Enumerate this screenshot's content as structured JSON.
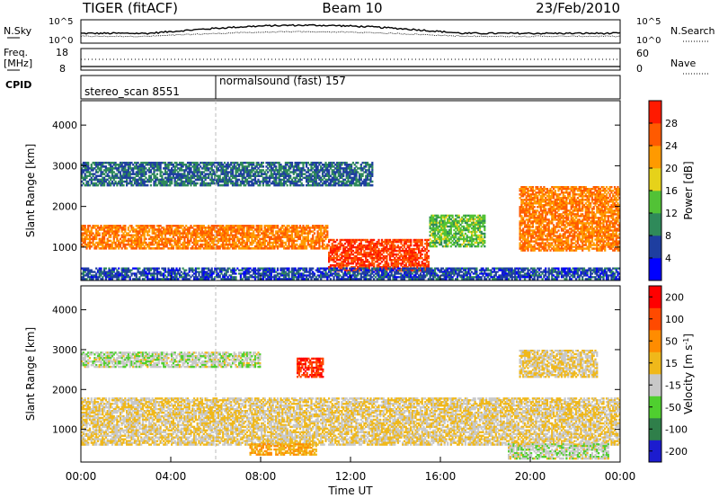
{
  "header": {
    "radar": "TIGER (fitACF)",
    "beam": "Beam 10",
    "date": "23/Feb/2010"
  },
  "noise_panel": {
    "left_label": "N.Sky",
    "left_ticks": [
      "10^5",
      "10^0"
    ],
    "right_label": "N.Search",
    "right_ticks": [
      "10^5",
      "10^0"
    ]
  },
  "freq_panel": {
    "left_label_1": "Freq.",
    "left_label_2": "[MHz]",
    "left_ticks": [
      "18",
      "8"
    ],
    "right_label": "Nave",
    "right_ticks": [
      "60",
      "0"
    ]
  },
  "cpid_panel": {
    "label": "CPID",
    "segments": [
      {
        "start_hour": 0,
        "end_hour": 6,
        "text": "stereo_scan 8551"
      },
      {
        "start_hour": 6,
        "end_hour": 24,
        "text": "normalsound (fast) 157"
      }
    ]
  },
  "chart_data": [
    {
      "type": "heatmap",
      "title": "",
      "xlabel": "Time UT",
      "ylabel": "Slant Range [km]",
      "x_ticks": [
        "00:00",
        "04:00",
        "08:00",
        "12:00",
        "16:00",
        "20:00",
        "00:00"
      ],
      "x_range_hours": [
        0,
        24
      ],
      "y_ticks": [
        "1000",
        "2000",
        "3000",
        "4000"
      ],
      "y_range": [
        180,
        4600
      ],
      "colorbar": {
        "label": "Power [dB]",
        "ticks": [
          "4",
          "8",
          "12",
          "16",
          "20",
          "24",
          "28"
        ],
        "range": [
          0,
          32
        ],
        "colors": [
          "#0000ff",
          "#1e3ea0",
          "#2f8a5a",
          "#52c236",
          "#e6d21a",
          "#ff9a00",
          "#ff5a00",
          "#ff1a00"
        ]
      },
      "echo_regions": [
        {
          "start_hour": 0,
          "end_hour": 11,
          "range_low": 950,
          "range_high": 1550,
          "value": 24
        },
        {
          "start_hour": 11,
          "end_hour": 15.5,
          "range_low": 400,
          "range_high": 1200,
          "value": 28
        },
        {
          "start_hour": 15.5,
          "end_hour": 18,
          "range_low": 1000,
          "range_high": 1800,
          "value": 14
        },
        {
          "start_hour": 19.5,
          "end_hour": 24,
          "range_low": 900,
          "range_high": 2500,
          "value": 24
        },
        {
          "start_hour": 0,
          "end_hour": 13,
          "range_low": 2500,
          "range_high": 3100,
          "value": 8
        },
        {
          "start_hour": 0,
          "end_hour": 24,
          "range_low": 200,
          "range_high": 500,
          "value": 6
        }
      ]
    },
    {
      "type": "heatmap",
      "title": "",
      "xlabel": "Time UT",
      "ylabel": "Slant Range [km]",
      "x_ticks": [
        "00:00",
        "04:00",
        "08:00",
        "12:00",
        "16:00",
        "20:00",
        "00:00"
      ],
      "x_range_hours": [
        0,
        24
      ],
      "y_ticks": [
        "1000",
        "2000",
        "3000",
        "4000"
      ],
      "y_range": [
        180,
        4600
      ],
      "colorbar": {
        "label": "Velocity [m s^-1]",
        "ticks": [
          "200",
          "100",
          "50",
          "15",
          "-15",
          "-50",
          "-100",
          "-200"
        ],
        "range": [
          -250,
          250
        ],
        "colors": [
          "#1c1ccf",
          "#2f7f4a",
          "#4fcf2f",
          "#c8c8c8",
          "#f0b81a",
          "#ff8c00",
          "#ff4a00",
          "#ff0000"
        ]
      },
      "echo_regions": [
        {
          "start_hour": 0,
          "end_hour": 24,
          "range_low": 600,
          "range_high": 1800,
          "value": 0
        },
        {
          "start_hour": 0,
          "end_hour": 8,
          "range_low": 2550,
          "range_high": 2950,
          "value": -40
        },
        {
          "start_hour": 9.6,
          "end_hour": 10.8,
          "range_low": 2300,
          "range_high": 2800,
          "value": 180
        },
        {
          "start_hour": 7.5,
          "end_hour": 10.5,
          "range_low": 350,
          "range_high": 650,
          "value": 60
        },
        {
          "start_hour": 19,
          "end_hour": 23.5,
          "range_low": 250,
          "range_high": 650,
          "value": -40
        },
        {
          "start_hour": 19.5,
          "end_hour": 23,
          "range_low": 2300,
          "range_high": 3000,
          "value": 0
        }
      ]
    }
  ]
}
